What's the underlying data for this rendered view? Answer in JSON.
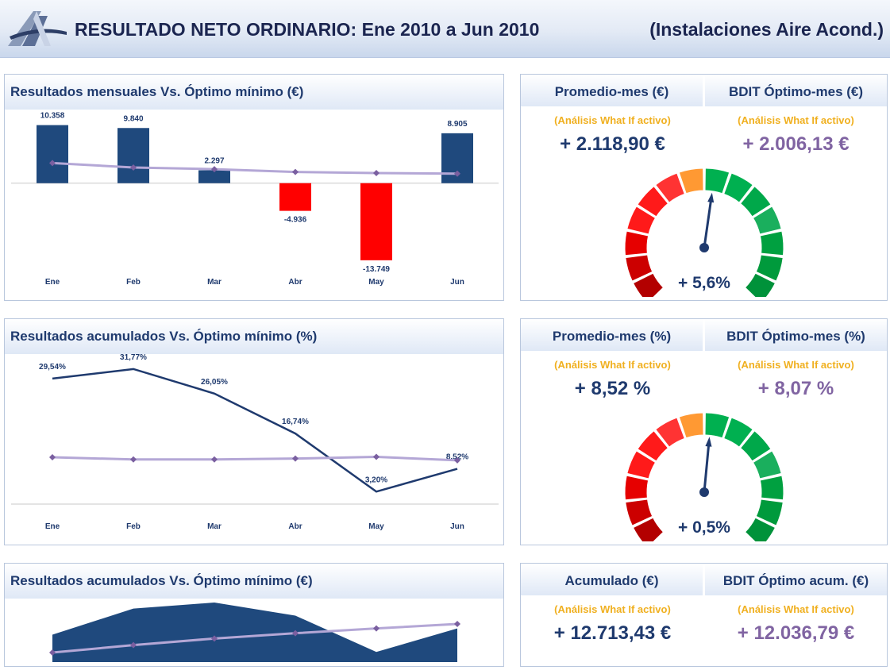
{
  "header": {
    "title": "RESULTADO NETO ORDINARIO: Ene 2010 a Jun 2010",
    "subtitle": "(Instalaciones Aire Acond.)"
  },
  "panel1": {
    "title": "Resultados mensuales  Vs.  Óptimo mínimo  (€)"
  },
  "panel2": {
    "title": "Resultados acumulados  Vs.  Óptimo mínimo  (%)"
  },
  "panel3": {
    "title": "Resultados acumulados  Vs.  Óptimo mínimo  (€)"
  },
  "kpi1": {
    "left_head": "Promedio-mes (€)",
    "right_head": "BDIT Óptimo-mes (€)",
    "whatif_left": "(Análisis What If activo)",
    "whatif_right": "(Análisis What If activo)",
    "left_value": "+ 2.118,90 €",
    "right_value": "+ 2.006,13 €",
    "gauge_value": "+ 5,6%",
    "gauge_fraction": 0.53
  },
  "kpi2": {
    "left_head": "Promedio-mes (%)",
    "right_head": "BDIT Óptimo-mes (%)",
    "whatif_left": "(Análisis What If activo)",
    "whatif_right": "(Análisis What If activo)",
    "left_value": "+ 8,52  %",
    "right_value": "+ 8,07  %",
    "gauge_value": "+ 0,5%",
    "gauge_fraction": 0.52
  },
  "kpi3": {
    "left_head": "Acumulado (€)",
    "right_head": "BDIT Óptimo acum. (€)",
    "whatif_left": "(Análisis What If activo)",
    "whatif_right": "(Análisis What If activo)",
    "left_value": "+ 12.713,43 €",
    "right_value": "+ 12.036,79 €"
  },
  "colors": {
    "bar_positive": "#1f497d",
    "bar_negative": "#ff0000",
    "series_line": "#1f3a6e",
    "optimum_line": "#b4a7d6",
    "optimum_marker": "#7a5fa0"
  },
  "chart_data": [
    {
      "type": "bar",
      "categories": [
        "Ene",
        "Feb",
        "Mar",
        "Abr",
        "May",
        "Jun"
      ],
      "series": [
        {
          "type": "bar",
          "values": [
            10358,
            9840,
            2297,
            -4936,
            -13749,
            8905
          ],
          "labels": [
            "10.358",
            "9.840",
            "2.297",
            "-4.936",
            "-13.749",
            "8.905"
          ]
        },
        {
          "type": "line",
          "values": [
            3600,
            2800,
            2500,
            2000,
            1800,
            1700
          ]
        }
      ],
      "ylim": [
        -20000,
        12000
      ]
    },
    {
      "type": "line",
      "categories": [
        "Ene",
        "Feb",
        "Mar",
        "Abr",
        "May",
        "Jun"
      ],
      "series": [
        {
          "values": [
            29.54,
            31.77,
            26.05,
            16.74,
            3.2,
            8.52
          ],
          "labels": [
            "29,54%",
            "31,77%",
            "26,05%",
            "16,74%",
            "3,20%",
            "8,52%"
          ]
        },
        {
          "values": [
            11.2,
            10.7,
            10.7,
            10.9,
            11.3,
            10.5
          ]
        }
      ],
      "ylim": [
        -1,
        36
      ]
    },
    {
      "type": "area",
      "categories": [
        "Ene",
        "Feb",
        "Mar",
        "Abr",
        "May",
        "Jun"
      ],
      "series": [
        {
          "type": "area",
          "values": [
            10358,
            20198,
            22495,
            17559,
            3810,
            12713
          ]
        },
        {
          "type": "line",
          "values": [
            3600,
            6400,
            8900,
            10900,
            12700,
            14400
          ]
        }
      ],
      "ylim": [
        0,
        24000
      ]
    }
  ]
}
